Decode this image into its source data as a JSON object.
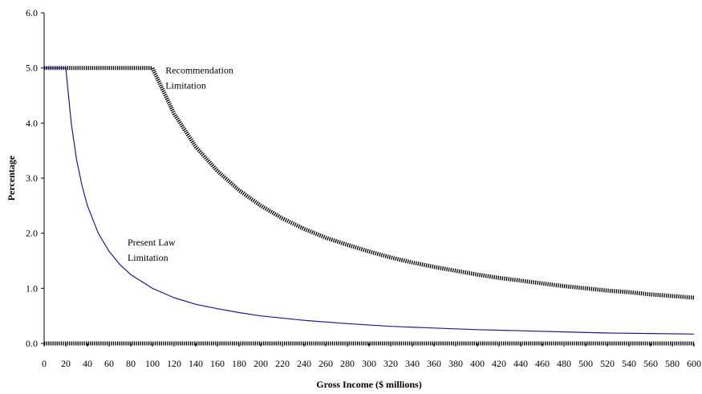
{
  "chart_data": {
    "type": "line",
    "xlabel": "Gross Income ($ millions)",
    "ylabel": "Percentage",
    "xlim": [
      0,
      600
    ],
    "ylim": [
      0,
      6
    ],
    "x_ticks": [
      "0",
      "20",
      "40",
      "60",
      "80",
      "100",
      "120",
      "140",
      "160",
      "180",
      "200",
      "220",
      "240",
      "260",
      "280",
      "300",
      "320",
      "340",
      "360",
      "380",
      "400",
      "420",
      "440",
      "460",
      "480",
      "500",
      "520",
      "540",
      "560",
      "580",
      "600"
    ],
    "y_ticks": [
      "0.0",
      "1.0",
      "2.0",
      "3.0",
      "4.0",
      "5.0",
      "6.0"
    ],
    "grid": false,
    "legend": "none",
    "series": [
      {
        "label": "Recommendation Limitation",
        "color": "#000000",
        "x": [
          0,
          20,
          40,
          60,
          80,
          100,
          120,
          140,
          160,
          180,
          200,
          220,
          240,
          260,
          280,
          300,
          320,
          340,
          360,
          380,
          400,
          420,
          440,
          460,
          480,
          500,
          520,
          540,
          560,
          580,
          600
        ],
        "y": [
          5.0,
          5.0,
          5.0,
          5.0,
          5.0,
          5.0,
          4.17,
          3.57,
          3.13,
          2.78,
          2.5,
          2.27,
          2.08,
          1.92,
          1.79,
          1.67,
          1.56,
          1.47,
          1.39,
          1.32,
          1.25,
          1.19,
          1.14,
          1.09,
          1.04,
          1.0,
          0.96,
          0.93,
          0.89,
          0.86,
          0.83
        ]
      },
      {
        "label": "Present Law Limitation",
        "color": "#1a1a8c",
        "x": [
          0,
          20,
          25,
          30,
          35,
          40,
          50,
          60,
          70,
          80,
          100,
          120,
          140,
          160,
          180,
          200,
          240,
          280,
          320,
          360,
          400,
          440,
          480,
          520,
          560,
          600
        ],
        "y": [
          5.0,
          5.0,
          4.0,
          3.33,
          2.86,
          2.5,
          2.0,
          1.67,
          1.43,
          1.25,
          1.0,
          0.83,
          0.71,
          0.63,
          0.56,
          0.5,
          0.42,
          0.36,
          0.31,
          0.28,
          0.25,
          0.23,
          0.21,
          0.19,
          0.18,
          0.17
        ]
      },
      {
        "label": "",
        "color": "#000000",
        "x": [
          0,
          600
        ],
        "y": [
          0,
          0
        ]
      }
    ],
    "annotations": [
      {
        "lines": [
          "Recommendation",
          "Limitation"
        ],
        "x": 112,
        "y": 4.9
      },
      {
        "lines": [
          "Present Law",
          "Limitation"
        ],
        "x": 77,
        "y": 1.78
      }
    ]
  }
}
